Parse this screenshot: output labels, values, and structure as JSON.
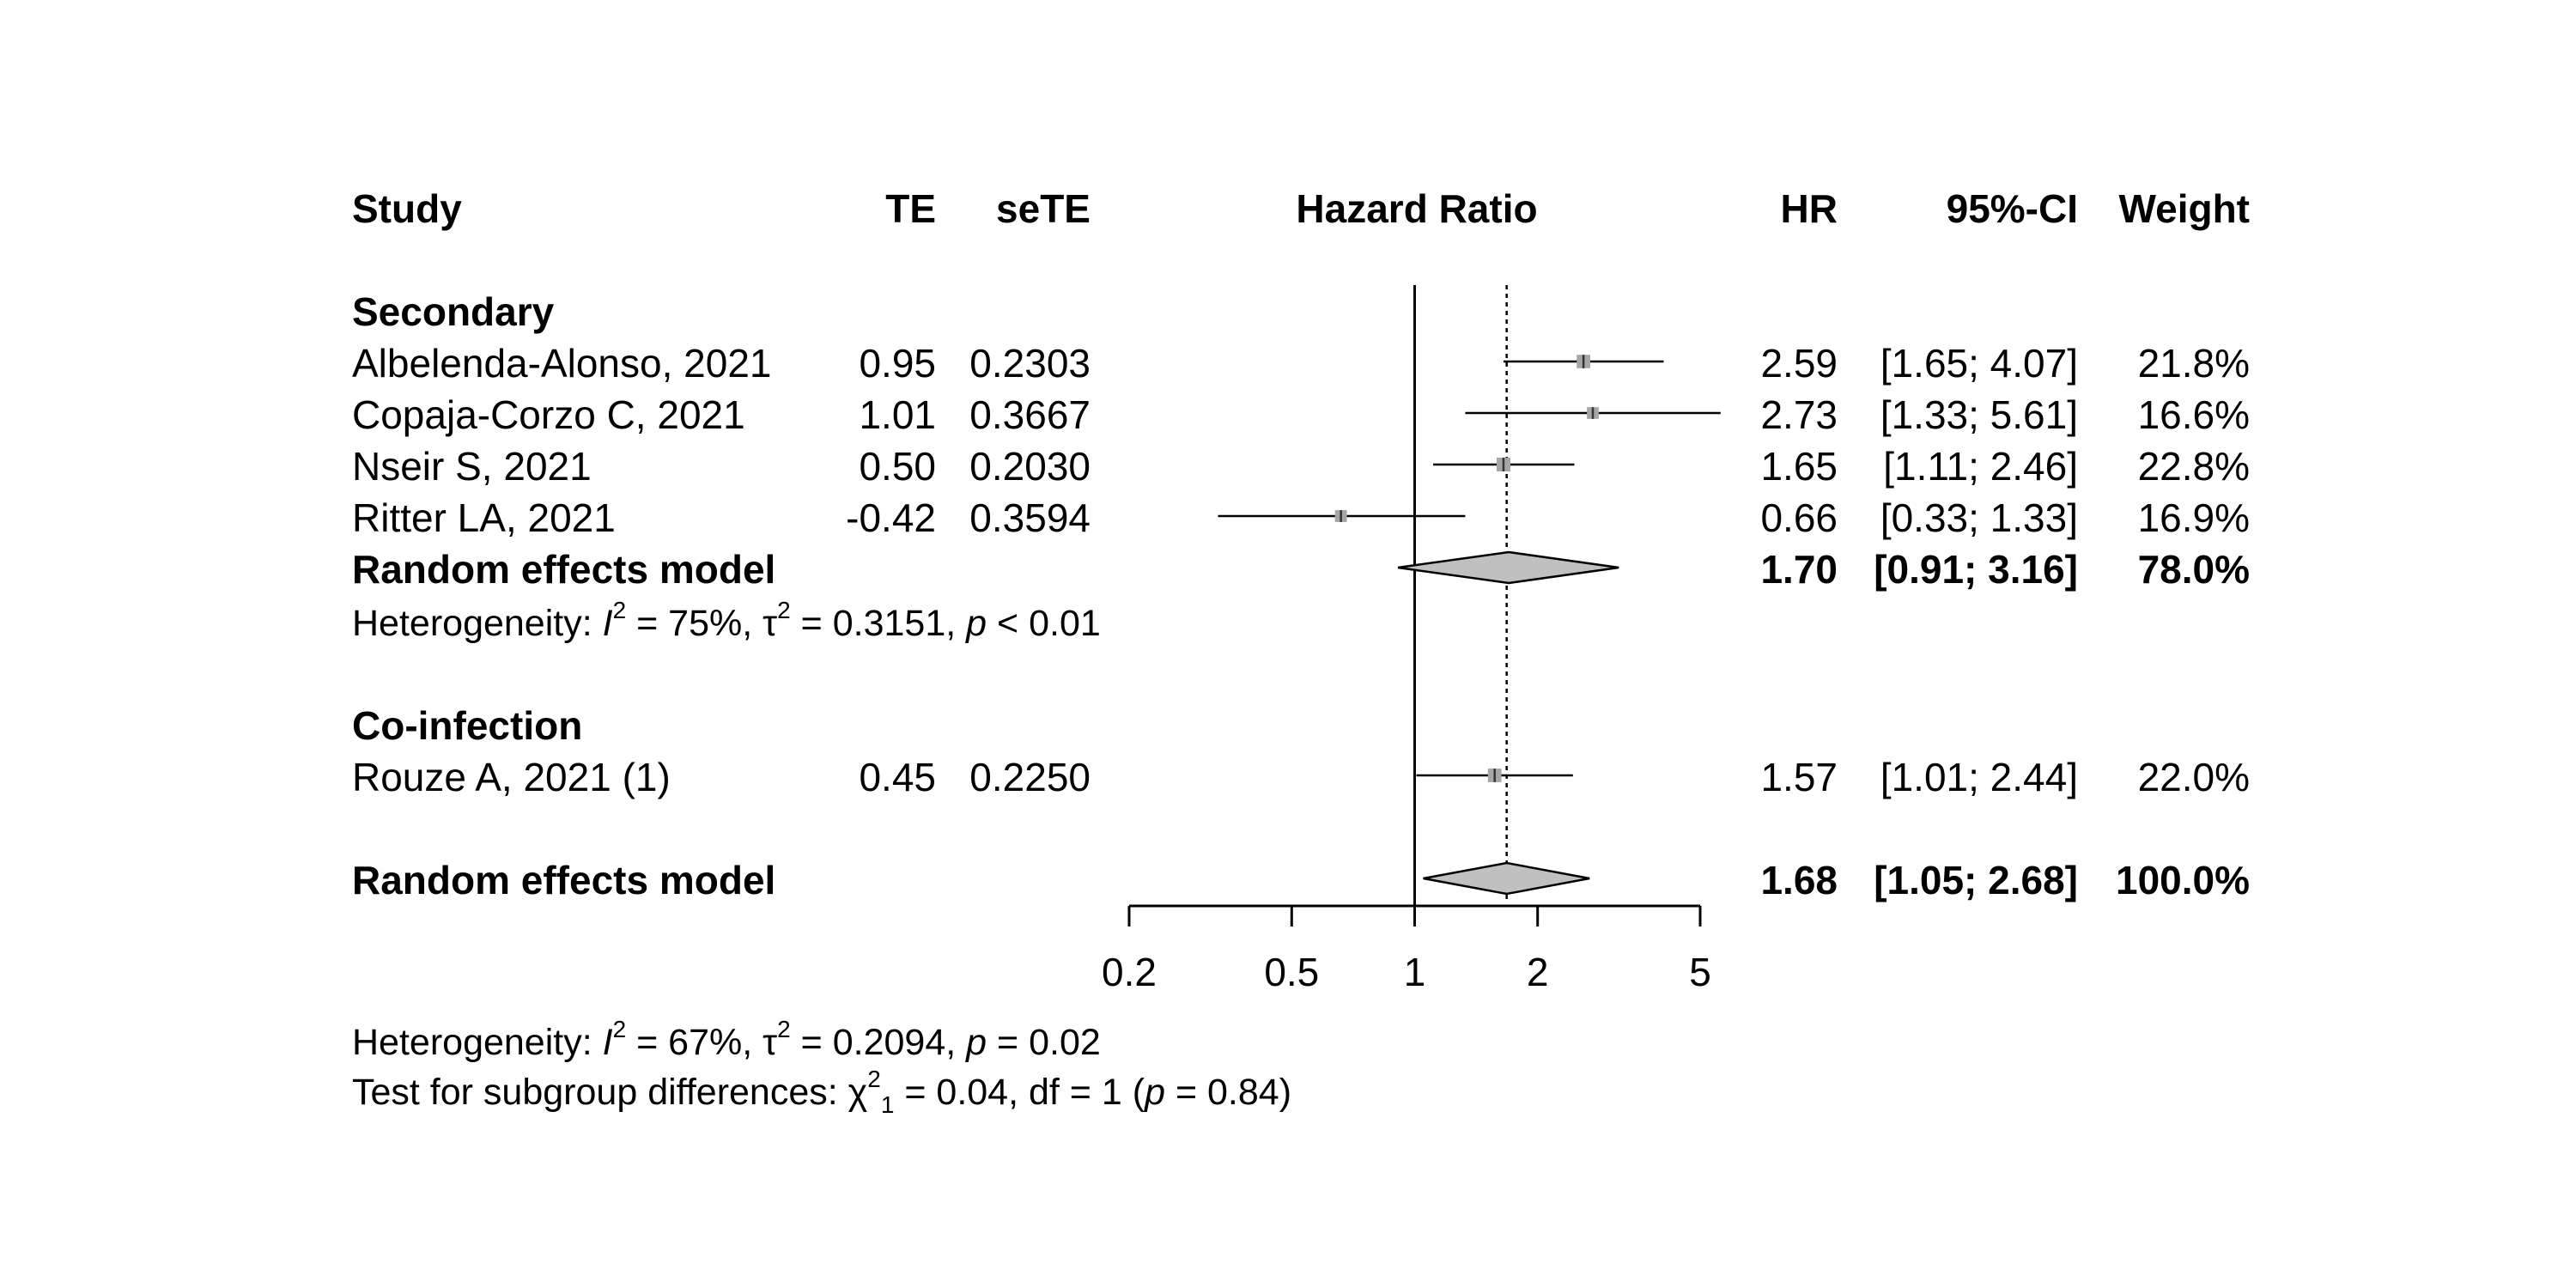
{
  "chart_data": {
    "type": "forest",
    "effect_measure": "Hazard Ratio",
    "columns": [
      "Study",
      "TE",
      "seTE",
      "Hazard Ratio",
      "HR",
      "95%-CI",
      "Weight"
    ],
    "x_axis": {
      "scale": "log",
      "ticks": [
        0.2,
        0.5,
        1,
        2,
        5
      ],
      "tick_labels": [
        "0.2",
        "0.5",
        "1",
        "2",
        "5"
      ],
      "range": [
        0.2,
        5
      ]
    },
    "null_line": 1,
    "overall_dashed_line": 1.68,
    "groups": [
      {
        "name": "Secondary",
        "studies": [
          {
            "study": "Albelenda-Alonso, 2021",
            "te": "0.95",
            "sete": "0.2303",
            "hr": 2.59,
            "lower": 1.65,
            "upper": 4.07,
            "hr_text": "2.59",
            "ci_text": "[1.65; 4.07]",
            "weight_text": "21.8%",
            "weight": 21.8
          },
          {
            "study": "Copaja-Corzo C, 2021",
            "te": "1.01",
            "sete": "0.3667",
            "hr": 2.73,
            "lower": 1.33,
            "upper": 5.61,
            "hr_text": "2.73",
            "ci_text": "[1.33; 5.61]",
            "weight_text": "16.6%",
            "weight": 16.6
          },
          {
            "study": "Nseir S, 2021",
            "te": "0.50",
            "sete": "0.2030",
            "hr": 1.65,
            "lower": 1.11,
            "upper": 2.46,
            "hr_text": "1.65",
            "ci_text": "[1.11; 2.46]",
            "weight_text": "22.8%",
            "weight": 22.8
          },
          {
            "study": "Ritter LA, 2021",
            "te": "-0.42",
            "sete": "0.3594",
            "hr": 0.66,
            "lower": 0.33,
            "upper": 1.33,
            "hr_text": "0.66",
            "ci_text": "[0.33; 1.33]",
            "weight_text": "16.9%",
            "weight": 16.9
          }
        ],
        "model": {
          "label": "Random effects model",
          "hr": 1.7,
          "lower": 0.91,
          "upper": 3.16,
          "hr_text": "1.70",
          "ci_text": "[0.91; 3.16]",
          "weight_text": "78.0%"
        },
        "heterogeneity": {
          "prefix": "Heterogeneity: ",
          "i2": "75%",
          "tau2": "0.3151",
          "p": "< 0.01"
        }
      },
      {
        "name": "Co-infection",
        "studies": [
          {
            "study": "Rouze A, 2021 (1)",
            "te": "0.45",
            "sete": "0.2250",
            "hr": 1.57,
            "lower": 1.01,
            "upper": 2.44,
            "hr_text": "1.57",
            "ci_text": "[1.01; 2.44]",
            "weight_text": "22.0%",
            "weight": 22.0
          }
        ]
      }
    ],
    "overall": {
      "label": "Random effects model",
      "hr": 1.68,
      "lower": 1.05,
      "upper": 2.68,
      "hr_text": "1.68",
      "ci_text": "[1.05; 2.68]",
      "weight_text": "100.0%"
    },
    "overall_heterogeneity": {
      "prefix": "Heterogeneity: ",
      "i2": "67%",
      "tau2": "0.2094",
      "p": "= 0.02"
    },
    "subgroup_test": {
      "prefix": "Test for subgroup differences: ",
      "chi2_df_sub": "1",
      "chi2": "0.04",
      "df": "1",
      "p": "0.84"
    },
    "colors": {
      "square": "#a6a6a6",
      "diamond": "#c0c0c0",
      "line": "#000000"
    }
  }
}
